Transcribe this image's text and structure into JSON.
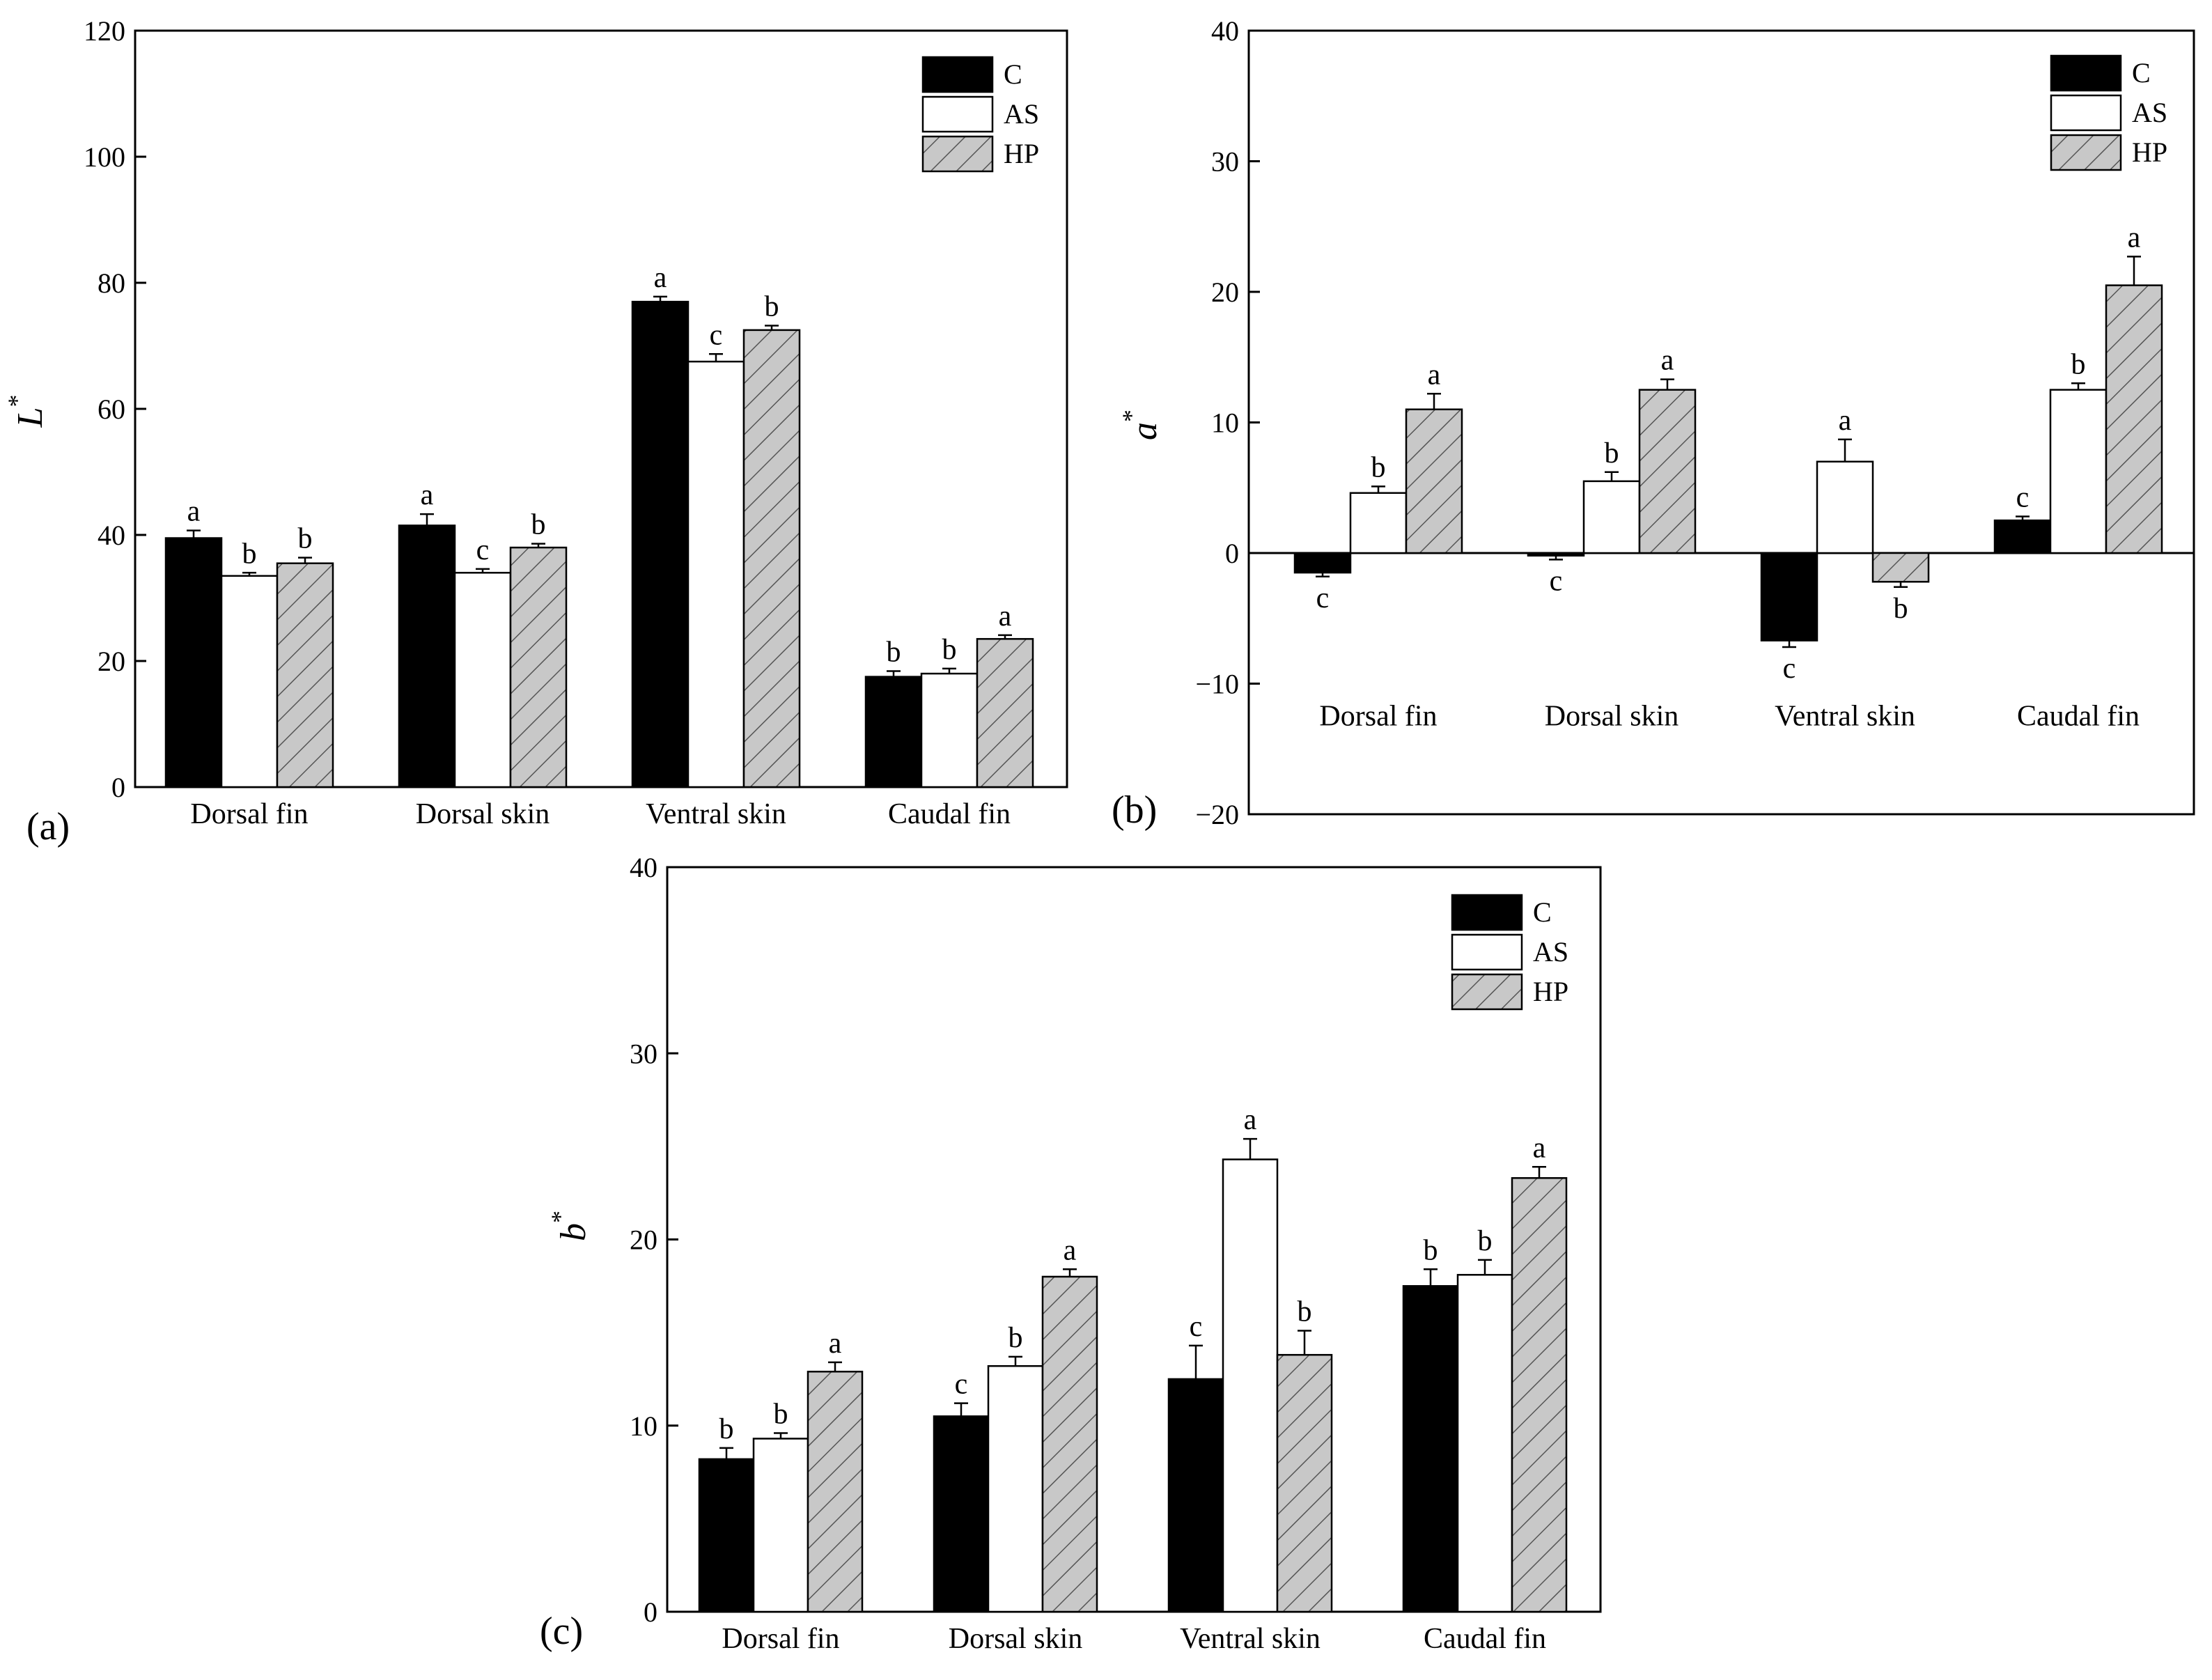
{
  "colors": {
    "C": "#000000",
    "AS": "#ffffff",
    "HP": "#c8c8c8",
    "hatch": "#555555",
    "axis": "#000000"
  },
  "legend": [
    {
      "key": "C",
      "label": "C"
    },
    {
      "key": "AS",
      "label": "AS"
    },
    {
      "key": "HP",
      "label": "HP"
    }
  ],
  "chart_data": [
    {
      "id": "a",
      "type": "bar",
      "panel_label": "(a)",
      "ylabel": "L",
      "ylabel_sup": "*",
      "ylim": [
        0,
        120
      ],
      "yticks": [
        0,
        20,
        40,
        60,
        80,
        100,
        120
      ],
      "legend_position": "top-right",
      "categories": [
        "Dorsal fin",
        "Dorsal skin",
        "Ventral skin",
        "Caudal fin"
      ],
      "series": [
        {
          "name": "C",
          "values": [
            39.5,
            41.5,
            77,
            17.5
          ],
          "errors": [
            1.2,
            1.8,
            0.8,
            0.9
          ],
          "letters": [
            "a",
            "a",
            "a",
            "b"
          ]
        },
        {
          "name": "AS",
          "values": [
            33.5,
            34,
            67.5,
            18
          ],
          "errors": [
            0.5,
            0.6,
            1.2,
            0.8
          ],
          "letters": [
            "b",
            "c",
            "c",
            "b"
          ]
        },
        {
          "name": "HP",
          "values": [
            35.5,
            38,
            72.5,
            23.5
          ],
          "errors": [
            0.9,
            0.6,
            0.7,
            0.6
          ],
          "letters": [
            "b",
            "b",
            "b",
            "a"
          ]
        }
      ]
    },
    {
      "id": "b",
      "type": "bar",
      "panel_label": "(b)",
      "ylabel": "a",
      "ylabel_sup": "*",
      "ylim": [
        -20,
        40
      ],
      "yticks": [
        -20,
        -10,
        0,
        10,
        20,
        30,
        40
      ],
      "legend_position": "top-right",
      "categories": [
        "Dorsal fin",
        "Dorsal skin",
        "Ventral skin",
        "Caudal fin"
      ],
      "series": [
        {
          "name": "C",
          "values": [
            -1.5,
            -0.2,
            -6.7,
            2.5
          ],
          "errors": [
            0.3,
            0.3,
            0.5,
            0.3
          ],
          "letters": [
            "c",
            "c",
            "c",
            "c"
          ]
        },
        {
          "name": "AS",
          "values": [
            4.6,
            5.5,
            7,
            12.5
          ],
          "errors": [
            0.5,
            0.7,
            1.7,
            0.5
          ],
          "letters": [
            "b",
            "b",
            "a",
            "b"
          ]
        },
        {
          "name": "HP",
          "values": [
            11,
            12.5,
            -2.2,
            20.5
          ],
          "errors": [
            1.2,
            0.8,
            0.4,
            2.2
          ],
          "letters": [
            "a",
            "a",
            "b",
            "a"
          ]
        }
      ]
    },
    {
      "id": "c",
      "type": "bar",
      "panel_label": "(c)",
      "ylabel": "b",
      "ylabel_sup": "*",
      "ylim": [
        0,
        40
      ],
      "yticks": [
        0,
        10,
        20,
        30,
        40
      ],
      "legend_position": "top-right",
      "categories": [
        "Dorsal fin",
        "Dorsal skin",
        "Ventral skin",
        "Caudal fin"
      ],
      "series": [
        {
          "name": "C",
          "values": [
            8.2,
            10.5,
            12.5,
            17.5
          ],
          "errors": [
            0.6,
            0.7,
            1.8,
            0.9
          ],
          "letters": [
            "b",
            "c",
            "c",
            "b"
          ]
        },
        {
          "name": "AS",
          "values": [
            9.3,
            13.2,
            24.3,
            18.1
          ],
          "errors": [
            0.3,
            0.5,
            1.1,
            0.8
          ],
          "letters": [
            "b",
            "b",
            "a",
            "b"
          ]
        },
        {
          "name": "HP",
          "values": [
            12.9,
            18,
            13.8,
            23.3
          ],
          "errors": [
            0.5,
            0.4,
            1.3,
            0.6
          ],
          "letters": [
            "a",
            "a",
            "b",
            "a"
          ]
        }
      ]
    }
  ]
}
